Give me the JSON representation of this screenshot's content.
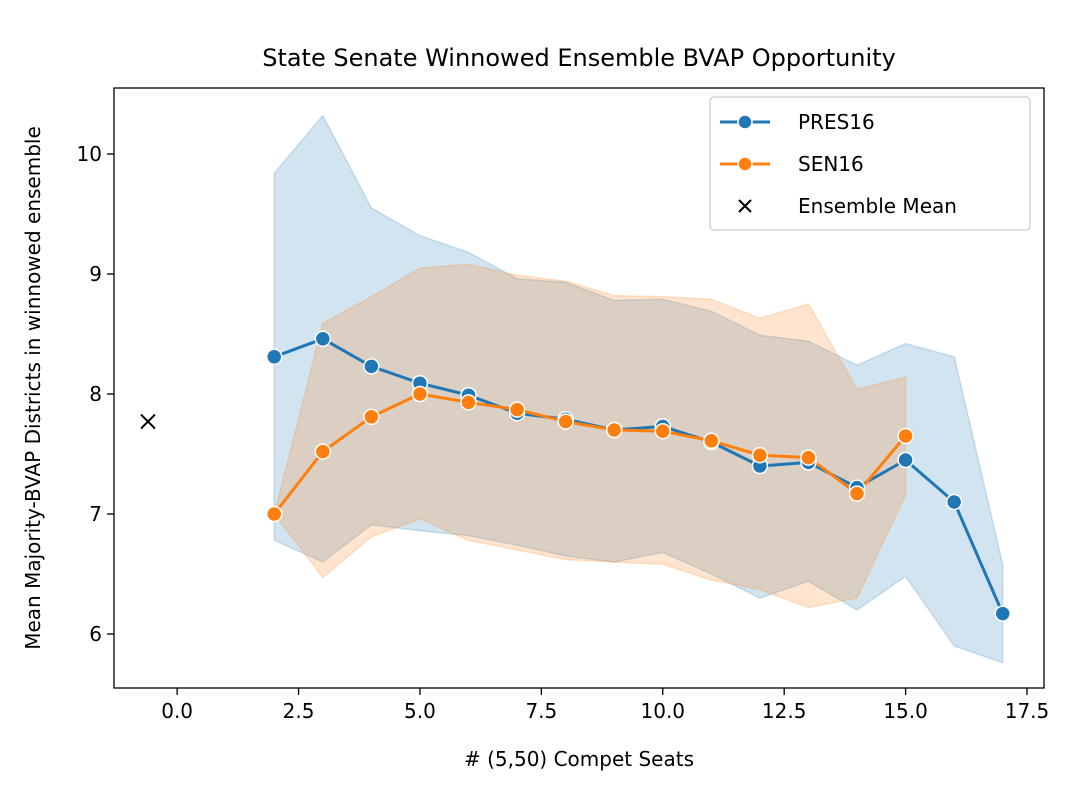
{
  "chart_data": {
    "type": "line",
    "title": "State Senate Winnowed Ensemble BVAP Opportunity",
    "xlabel": "# (5,50) Compet Seats",
    "ylabel": "Mean Majority-BVAP Districts in winnowed ensemble",
    "xlim": [
      -1.3,
      17.85
    ],
    "ylim": [
      5.55,
      10.55
    ],
    "x_ticks": [
      0.0,
      2.5,
      5.0,
      7.5,
      10.0,
      12.5,
      15.0,
      17.5
    ],
    "x_tick_labels": [
      "0.0",
      "2.5",
      "5.0",
      "7.5",
      "10.0",
      "12.5",
      "15.0",
      "17.5"
    ],
    "y_ticks": [
      6,
      7,
      8,
      9,
      10
    ],
    "y_tick_labels": [
      "6",
      "7",
      "8",
      "9",
      "10"
    ],
    "grid": false,
    "legend_position": "top-right",
    "series": [
      {
        "name": "PRES16",
        "color": "#1f77b4",
        "marker": "circle",
        "x": [
          2,
          3,
          4,
          5,
          6,
          7,
          8,
          9,
          10,
          11,
          12,
          13,
          14,
          15,
          16,
          17
        ],
        "y": [
          8.31,
          8.46,
          8.23,
          8.09,
          7.99,
          7.84,
          7.79,
          7.7,
          7.73,
          7.6,
          7.4,
          7.43,
          7.22,
          7.45,
          7.1,
          6.17
        ],
        "band_lower": [
          6.78,
          6.6,
          6.91,
          6.86,
          6.82,
          6.74,
          6.65,
          6.6,
          6.68,
          6.5,
          6.3,
          6.44,
          6.2,
          6.48,
          5.9,
          5.76
        ],
        "band_upper": [
          9.84,
          10.32,
          9.55,
          9.32,
          9.18,
          8.96,
          8.93,
          8.78,
          8.79,
          8.69,
          8.49,
          8.44,
          8.24,
          8.42,
          8.31,
          6.58
        ]
      },
      {
        "name": "SEN16",
        "color": "#ff7f0e",
        "marker": "circle",
        "x": [
          2,
          3,
          4,
          5,
          6,
          7,
          8,
          9,
          10,
          11,
          12,
          13,
          14,
          15
        ],
        "y": [
          7.0,
          7.52,
          7.81,
          8.0,
          7.93,
          7.87,
          7.77,
          7.7,
          7.69,
          7.61,
          7.49,
          7.47,
          7.17,
          7.65
        ],
        "band_lower": [
          7.0,
          6.47,
          6.81,
          6.96,
          6.78,
          6.7,
          6.62,
          6.6,
          6.58,
          6.45,
          6.37,
          6.22,
          6.3,
          7.16
        ],
        "band_upper": [
          7.0,
          8.59,
          8.81,
          9.05,
          9.08,
          8.99,
          8.94,
          8.82,
          8.81,
          8.79,
          8.63,
          8.75,
          8.04,
          8.14
        ]
      },
      {
        "name": "Ensemble Mean",
        "color": "#000000",
        "marker": "x",
        "x": [
          -0.6
        ],
        "y": [
          7.77
        ]
      }
    ]
  }
}
